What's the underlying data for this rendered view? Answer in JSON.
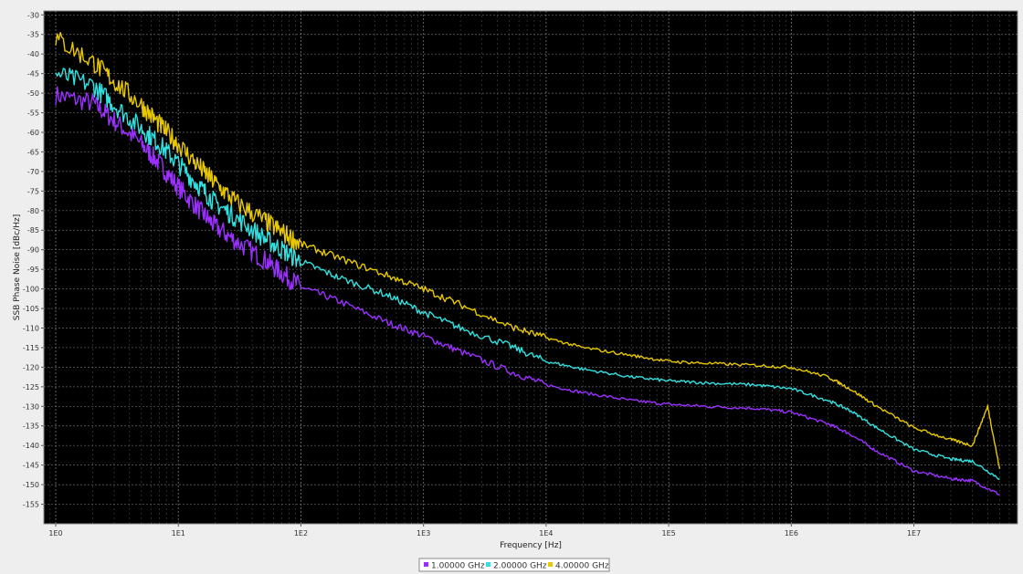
{
  "chart_data": {
    "type": "line",
    "title": "",
    "xlabel": "Frequency [Hz]",
    "ylabel": "SSB Phase Noise [dBc/Hz]",
    "xscale": "log",
    "xlim": [
      0.8,
      70000000
    ],
    "ylim": [
      -160,
      -29
    ],
    "x_ticks": [
      1,
      10,
      100,
      1000,
      10000,
      100000,
      1000000,
      10000000
    ],
    "x_tick_labels": [
      "1E0",
      "1E1",
      "1E2",
      "1E3",
      "1E4",
      "1E5",
      "1E6",
      "1E7"
    ],
    "y_ticks": [
      -30,
      -35,
      -40,
      -45,
      -50,
      -55,
      -60,
      -65,
      -70,
      -75,
      -80,
      -85,
      -90,
      -95,
      -100,
      -105,
      -110,
      -115,
      -120,
      -125,
      -130,
      -135,
      -140,
      -145,
      -150,
      -155
    ],
    "y_tick_labels": [
      "-30",
      "-35",
      "-40",
      "-45",
      "-50",
      "-55",
      "-60",
      "-65",
      "-70",
      "-75",
      "-80",
      "-85",
      "-90",
      "-95",
      "-100",
      "-105",
      "-110",
      "-115",
      "-120",
      "-125",
      "-130",
      "-135",
      "-140",
      "-145",
      "-150",
      "-155"
    ],
    "grid": true,
    "background": "#000000",
    "legend_position": "bottom-center",
    "series": [
      {
        "name": "1.00000 GHz",
        "color": "#9b30ff",
        "x": [
          1,
          2,
          3,
          5,
          7,
          10,
          15,
          20,
          30,
          50,
          70,
          100,
          200,
          500,
          1000,
          2000,
          5000,
          10000,
          20000,
          50000,
          100000,
          200000,
          500000,
          1000000,
          2000000,
          3000000,
          5000000,
          10000000,
          20000000,
          30000000,
          50000000
        ],
        "values": [
          -50.5,
          -52.5,
          -57,
          -63,
          -68,
          -74,
          -80,
          -84,
          -88,
          -92.5,
          -96,
          -99.5,
          -103,
          -108.5,
          -112,
          -116,
          -121,
          -124.5,
          -126.5,
          -128.5,
          -129.5,
          -130,
          -130.5,
          -131.5,
          -134.5,
          -137,
          -141.5,
          -146.5,
          -148.5,
          -149,
          -152.5
        ]
      },
      {
        "name": "2.00000 GHz",
        "color": "#33e0e0",
        "x": [
          1,
          2,
          3,
          5,
          7,
          10,
          15,
          20,
          30,
          50,
          70,
          100,
          200,
          500,
          1000,
          2000,
          5000,
          10000,
          20000,
          50000,
          100000,
          200000,
          500000,
          1000000,
          2000000,
          3000000,
          5000000,
          10000000,
          20000000,
          30000000,
          50000000
        ],
        "values": [
          -45,
          -48,
          -53,
          -59,
          -63,
          -68,
          -74,
          -78,
          -82,
          -87,
          -90,
          -93,
          -97,
          -101.5,
          -106,
          -110,
          -114.5,
          -118.5,
          -120.5,
          -122.5,
          -123.5,
          -124,
          -124.5,
          -125.5,
          -128.5,
          -131,
          -135.5,
          -141,
          -143.5,
          -144,
          -148.5
        ]
      },
      {
        "name": "4.00000 GHz",
        "color": "#e8c800",
        "x": [
          1,
          2,
          3,
          5,
          7,
          10,
          15,
          20,
          30,
          50,
          70,
          100,
          200,
          500,
          1000,
          2000,
          5000,
          10000,
          20000,
          50000,
          100000,
          200000,
          500000,
          1000000,
          2000000,
          3000000,
          5000000,
          10000000,
          20000000,
          30000000,
          40000000,
          50000000
        ],
        "values": [
          -36,
          -42,
          -47,
          -53,
          -58,
          -63,
          -69,
          -73,
          -78,
          -82.5,
          -85.5,
          -88.5,
          -92,
          -96.5,
          -100,
          -104,
          -109.5,
          -112.5,
          -115,
          -117,
          -118.5,
          -119,
          -119.5,
          -120,
          -122.5,
          -125.5,
          -130,
          -135.5,
          -138.5,
          -140,
          -130,
          -146
        ]
      }
    ]
  }
}
